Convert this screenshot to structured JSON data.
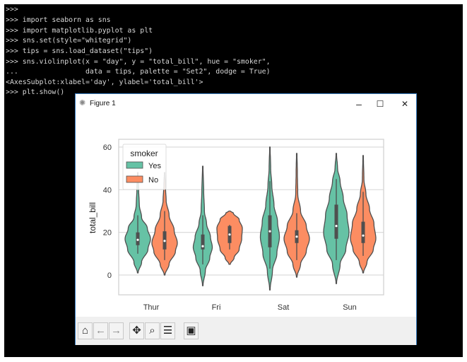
{
  "terminal": {
    "lines": [
      ">>>",
      ">>> import seaborn as sns",
      ">>> import matplotlib.pyplot as plt",
      ">>> sns.set(style=\"whitegrid\")",
      ">>> tips = sns.load_dataset(\"tips\")",
      ">>> sns.violinplot(x = \"day\", y = \"total_bill\", hue = \"smoker\",",
      "...                data = tips, palette = \"Set2\", dodge = True)",
      "<AxesSubplot:xlabel='day', ylabel='total_bill'>",
      ">>> plt.show()"
    ]
  },
  "window": {
    "title": "Figure 1",
    "icon": "matplotlib-icon",
    "minimize": "–",
    "maximize": "☐",
    "close": "✕"
  },
  "toolbar": {
    "buttons": [
      {
        "name": "home-icon",
        "glyph": "⌂"
      },
      {
        "name": "back-icon",
        "glyph": "←"
      },
      {
        "name": "forward-icon",
        "glyph": "→"
      },
      {
        "name": "pan-icon",
        "glyph": "✥"
      },
      {
        "name": "zoom-icon",
        "glyph": "⌕"
      },
      {
        "name": "configure-subplots-icon",
        "glyph": "☰"
      },
      {
        "name": "save-icon",
        "glyph": "▣"
      }
    ]
  },
  "chart_data": {
    "type": "violin",
    "xlabel": "",
    "ylabel": "total_bill",
    "categories": [
      "Thur",
      "Fri",
      "Sat",
      "Sun"
    ],
    "ylim": [
      -10,
      63
    ],
    "yticks": [
      0,
      20,
      40,
      60
    ],
    "grid": true,
    "legend": {
      "title": "smoker",
      "placement": "top-left",
      "entries": [
        "Yes",
        "No"
      ]
    },
    "colors": {
      "Yes": "#66c2a5",
      "No": "#fc8d62",
      "outline": "#4f4f4f"
    },
    "series": [
      {
        "name": "Yes",
        "violins": [
          {
            "category": "Thur",
            "range": [
              1,
              48
            ],
            "whiskers": [
              10,
              28
            ],
            "q1": 14,
            "median": 16.5,
            "q3": 20,
            "density": [
              [
                1,
                0.03
              ],
              [
                6,
                0.3
              ],
              [
                12,
                0.8
              ],
              [
                17,
                1.0
              ],
              [
                22,
                0.75
              ],
              [
                27,
                0.3
              ],
              [
                33,
                0.12
              ],
              [
                40,
                0.07
              ],
              [
                48,
                0.02
              ]
            ]
          },
          {
            "category": "Fri",
            "range": [
              -5,
              51
            ],
            "whiskers": [
              5,
              28
            ],
            "q1": 12,
            "median": 13.5,
            "q3": 19,
            "density": [
              [
                -5,
                0.02
              ],
              [
                2,
                0.2
              ],
              [
                8,
                0.55
              ],
              [
                13,
                0.75
              ],
              [
                18,
                0.6
              ],
              [
                24,
                0.3
              ],
              [
                30,
                0.13
              ],
              [
                40,
                0.07
              ],
              [
                51,
                0.02
              ]
            ]
          },
          {
            "category": "Sat",
            "range": [
              -7,
              60
            ],
            "whiskers": [
              3,
              44
            ],
            "q1": 13,
            "median": 20.5,
            "q3": 28,
            "density": [
              [
                -7,
                0.02
              ],
              [
                2,
                0.2
              ],
              [
                10,
                0.55
              ],
              [
                18,
                0.75
              ],
              [
                25,
                0.6
              ],
              [
                33,
                0.32
              ],
              [
                42,
                0.15
              ],
              [
                50,
                0.06
              ],
              [
                60,
                0.02
              ]
            ]
          },
          {
            "category": "Sun",
            "range": [
              -4,
              57
            ],
            "whiskers": [
              7,
              45
            ],
            "q1": 17,
            "median": 23,
            "q3": 33,
            "density": [
              [
                -4,
                0.02
              ],
              [
                5,
                0.3
              ],
              [
                12,
                0.75
              ],
              [
                20,
                1.0
              ],
              [
                28,
                0.85
              ],
              [
                36,
                0.55
              ],
              [
                44,
                0.3
              ],
              [
                50,
                0.1
              ],
              [
                57,
                0.02
              ]
            ]
          }
        ]
      },
      {
        "name": "No",
        "violins": [
          {
            "category": "Thur",
            "range": [
              0,
              48
            ],
            "whiskers": [
              7,
              30
            ],
            "q1": 12,
            "median": 16,
            "q3": 20.5,
            "density": [
              [
                0,
                0.03
              ],
              [
                5,
                0.35
              ],
              [
                11,
                0.85
              ],
              [
                15,
                1.0
              ],
              [
                21,
                0.75
              ],
              [
                28,
                0.35
              ],
              [
                35,
                0.12
              ],
              [
                42,
                0.06
              ],
              [
                48,
                0.02
              ]
            ]
          },
          {
            "category": "Fri",
            "range": [
              5,
              30
            ],
            "whiskers": [
              12,
              23.5
            ],
            "q1": 15,
            "median": 19,
            "q3": 23,
            "density": [
              [
                5,
                0.05
              ],
              [
                8,
                0.35
              ],
              [
                12,
                0.75
              ],
              [
                17,
                0.95
              ],
              [
                22,
                1.0
              ],
              [
                26,
                0.75
              ],
              [
                29,
                0.3
              ],
              [
                30,
                0.05
              ]
            ]
          },
          {
            "category": "Sat",
            "range": [
              -1,
              57
            ],
            "whiskers": [
              7,
              29
            ],
            "q1": 15,
            "median": 18,
            "q3": 21,
            "density": [
              [
                -1,
                0.02
              ],
              [
                5,
                0.3
              ],
              [
                11,
                0.75
              ],
              [
                17,
                1.0
              ],
              [
                23,
                0.75
              ],
              [
                30,
                0.3
              ],
              [
                38,
                0.08
              ],
              [
                48,
                0.05
              ],
              [
                57,
                0.02
              ]
            ]
          },
          {
            "category": "Sun",
            "range": [
              1,
              56
            ],
            "whiskers": [
              9,
              39
            ],
            "q1": 15,
            "median": 18.5,
            "q3": 25,
            "density": [
              [
                1,
                0.03
              ],
              [
                6,
                0.3
              ],
              [
                12,
                0.8
              ],
              [
                17,
                1.0
              ],
              [
                24,
                0.85
              ],
              [
                31,
                0.5
              ],
              [
                38,
                0.22
              ],
              [
                45,
                0.06
              ],
              [
                56,
                0.02
              ]
            ]
          }
        ]
      }
    ]
  }
}
